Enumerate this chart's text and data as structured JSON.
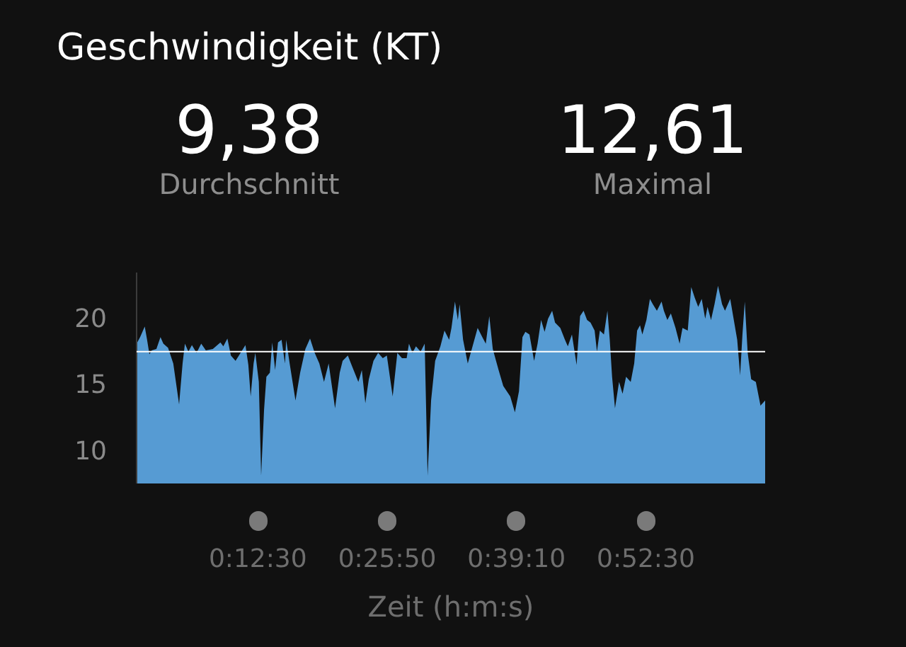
{
  "chart_data": {
    "type": "area",
    "title": "Geschwindigkeit (KT)",
    "annotations": [
      "9,38",
      "Durchschnitt",
      "12,61",
      "Maximal"
    ],
    "xlabel": "Zeit (h:m:s)",
    "color": "#569bd3",
    "x": [
      0,
      0.006,
      0.014,
      0.018,
      0.022,
      0.026,
      0.034,
      0.041,
      0.046,
      0.054,
      0.063,
      0.073,
      0.079,
      0.083,
      0.089,
      0.095,
      0.103,
      0.111,
      0.119,
      0.131,
      0.144,
      0.149,
      0.156,
      0.162,
      0.17,
      0.18,
      0.187,
      0.192,
      0.196,
      0.201,
      0.204,
      0.21,
      0.214,
      0.219,
      0.223,
      0.229,
      0.233,
      0.238,
      0.243,
      0.249,
      0.255,
      0.257,
      0.263,
      0.273,
      0.281,
      0.29,
      0.298,
      0.306,
      0.314,
      0.322,
      0.33,
      0.341,
      0.349,
      0.354,
      0.363,
      0.371,
      0.381,
      0.387,
      0.393,
      0.399,
      0.407,
      0.415,
      0.423,
      0.43,
      0.44,
      0.448,
      0.456,
      0.464,
      0.468,
      0.474,
      0.48,
      0.488,
      0.495,
      0.5,
      0.506,
      0.513,
      0.522,
      0.529,
      0.537,
      0.541,
      0.547,
      0.552,
      0.555,
      0.561,
      0.569,
      0.576,
      0.586,
      0.594,
      0.6,
      0.606,
      0.612,
      0.622,
      0.63,
      0.642,
      0.65,
      0.657,
      0.663,
      0.668,
      0.675,
      0.683,
      0.689,
      0.695,
      0.701,
      0.707,
      0.714,
      0.719,
      0.728,
      0.736,
      0.741,
      0.748,
      0.756,
      0.762,
      0.768,
      0.774,
      0.78,
      0.787,
      0.791,
      0.796,
      0.803,
      0.809,
      0.813,
      0.817,
      0.822,
      0.829,
      0.835,
      0.841,
      0.849,
      0.855,
      0.86,
      0.865,
      0.869,
      0.876,
      0.882,
      0.887,
      0.894,
      0.902,
      0.906,
      0.912,
      0.918,
      0.926,
      0.933,
      0.938,
      0.947,
      0.953,
      0.959,
      0.965,
      0.971,
      0.977,
      0.981,
      0.987,
      0.993,
      0.999,
      1.006,
      1.011,
      1.02,
      1.025,
      1.032,
      1.037,
      1.041,
      1.045,
      1.05,
      1.056,
      1.064,
      1.072,
      1.08
    ],
    "values": [
      18.0,
      18.5,
      19.3,
      18.3,
      17.2,
      17.5,
      17.6,
      18.5,
      18.0,
      17.7,
      16.5,
      13.4,
      16.5,
      18.0,
      17.4,
      17.9,
      17.3,
      18.0,
      17.5,
      17.6,
      18.1,
      17.8,
      18.4,
      17.1,
      16.7,
      17.4,
      17.9,
      16.4,
      14.0,
      16.5,
      17.3,
      15.1,
      8.0,
      13.0,
      15.5,
      15.8,
      18.1,
      16.0,
      18.1,
      18.3,
      16.5,
      18.3,
      16.5,
      13.7,
      15.8,
      17.6,
      18.4,
      17.3,
      16.5,
      15.1,
      16.5,
      13.1,
      15.8,
      16.7,
      17.1,
      16.2,
      15.1,
      16.0,
      13.5,
      15.3,
      16.7,
      17.3,
      16.9,
      17.1,
      14.0,
      17.3,
      16.9,
      16.9,
      18.0,
      17.3,
      17.8,
      17.4,
      18.0,
      8.0,
      13.7,
      16.7,
      17.8,
      19.0,
      18.3,
      19.2,
      21.2,
      19.8,
      21.0,
      18.3,
      16.5,
      17.6,
      19.2,
      18.5,
      18.0,
      20.1,
      17.6,
      16.0,
      14.8,
      14.0,
      12.8,
      14.4,
      18.5,
      18.9,
      18.7,
      16.7,
      18.0,
      19.8,
      18.9,
      19.9,
      20.5,
      19.6,
      19.2,
      18.3,
      17.8,
      18.7,
      16.4,
      20.1,
      20.5,
      19.8,
      19.6,
      19.0,
      17.4,
      19.0,
      18.7,
      20.5,
      18.3,
      15.5,
      13.1,
      15.1,
      14.2,
      15.5,
      15.1,
      16.5,
      19.0,
      19.4,
      18.7,
      19.8,
      21.4,
      21.0,
      20.5,
      21.2,
      20.5,
      19.8,
      20.3,
      19.2,
      18.0,
      19.2,
      19.0,
      22.3,
      21.5,
      20.8,
      21.4,
      19.9,
      20.8,
      19.8,
      21.0,
      22.4,
      21.0,
      20.5,
      21.4,
      20.1,
      18.3,
      15.6,
      18.7,
      21.2,
      17.3,
      15.3,
      15.1,
      13.3,
      13.7
    ],
    "xlim": [
      0,
      1.08
    ],
    "ylim": [
      7.4,
      23.4
    ],
    "xticks": [
      {
        "value": 0.2083,
        "label": "0:12:30"
      },
      {
        "value": 0.4306,
        "label": "0:25:50"
      },
      {
        "value": 0.6528,
        "label": "0:39:10"
      },
      {
        "value": 0.875,
        "label": "0:52:30"
      }
    ],
    "yticks": [
      10,
      15,
      20
    ],
    "ref_lines": [
      {
        "axis": "y",
        "value": 17.4,
        "color": "#ffffff"
      }
    ],
    "grid": false
  }
}
